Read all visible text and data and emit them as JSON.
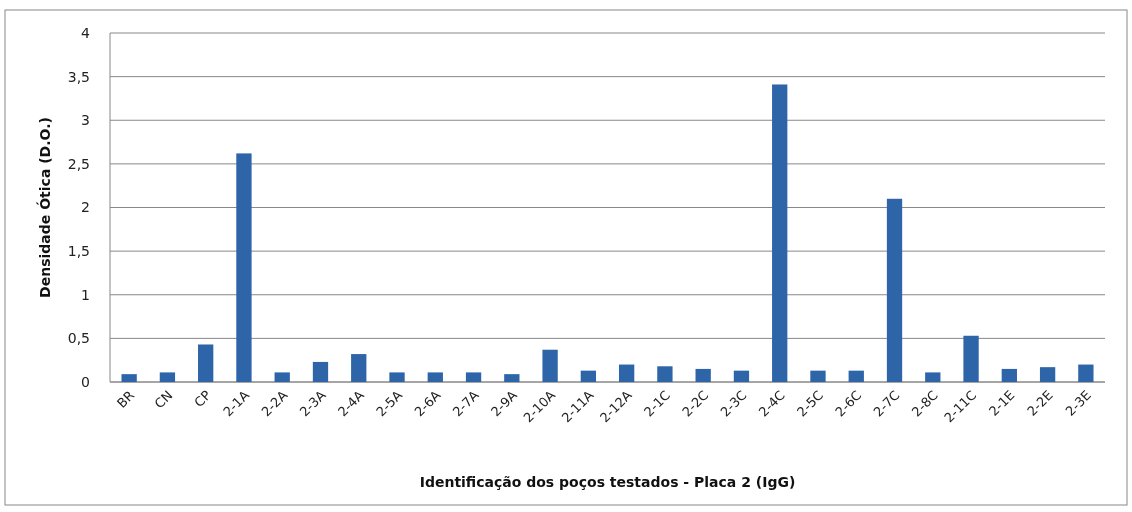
{
  "chart_data": {
    "type": "bar",
    "xlabel": "Identificação  dos poços testados - Placa 2 (IgG)",
    "ylabel": "Densidade Ótica (D.O.)",
    "categories": [
      "BR",
      "CN",
      "CP",
      "2-1A",
      "2-2A",
      "2-3A",
      "2-4A",
      "2-5A",
      "2-6A",
      "2-7A",
      "2-9A",
      "2-10A",
      "2-11A",
      "2-12A",
      "2-1C",
      "2-2C",
      "2-3C",
      "2-4C",
      "2-5C",
      "2-6C",
      "2-7C",
      "2-8C",
      "2-11C",
      "2-1E",
      "2-2E",
      "2-3E"
    ],
    "values": [
      0.09,
      0.11,
      0.43,
      2.62,
      0.11,
      0.23,
      0.32,
      0.11,
      0.11,
      0.11,
      0.09,
      0.37,
      0.13,
      0.2,
      0.18,
      0.15,
      0.13,
      3.41,
      0.13,
      0.13,
      2.1,
      0.11,
      0.53,
      0.15,
      0.17,
      0.2
    ],
    "color": "#2e64a8",
    "ylim": [
      0,
      4
    ],
    "yticks": [
      0,
      {
        "value": 0.5,
        "label": "0,5"
      },
      1,
      {
        "value": 1.5,
        "label": "1,5"
      },
      2,
      {
        "value": 2.5,
        "label": "2,5"
      },
      3,
      {
        "value": 3.5,
        "label": "3,5"
      },
      4
    ],
    "grid": "y"
  }
}
